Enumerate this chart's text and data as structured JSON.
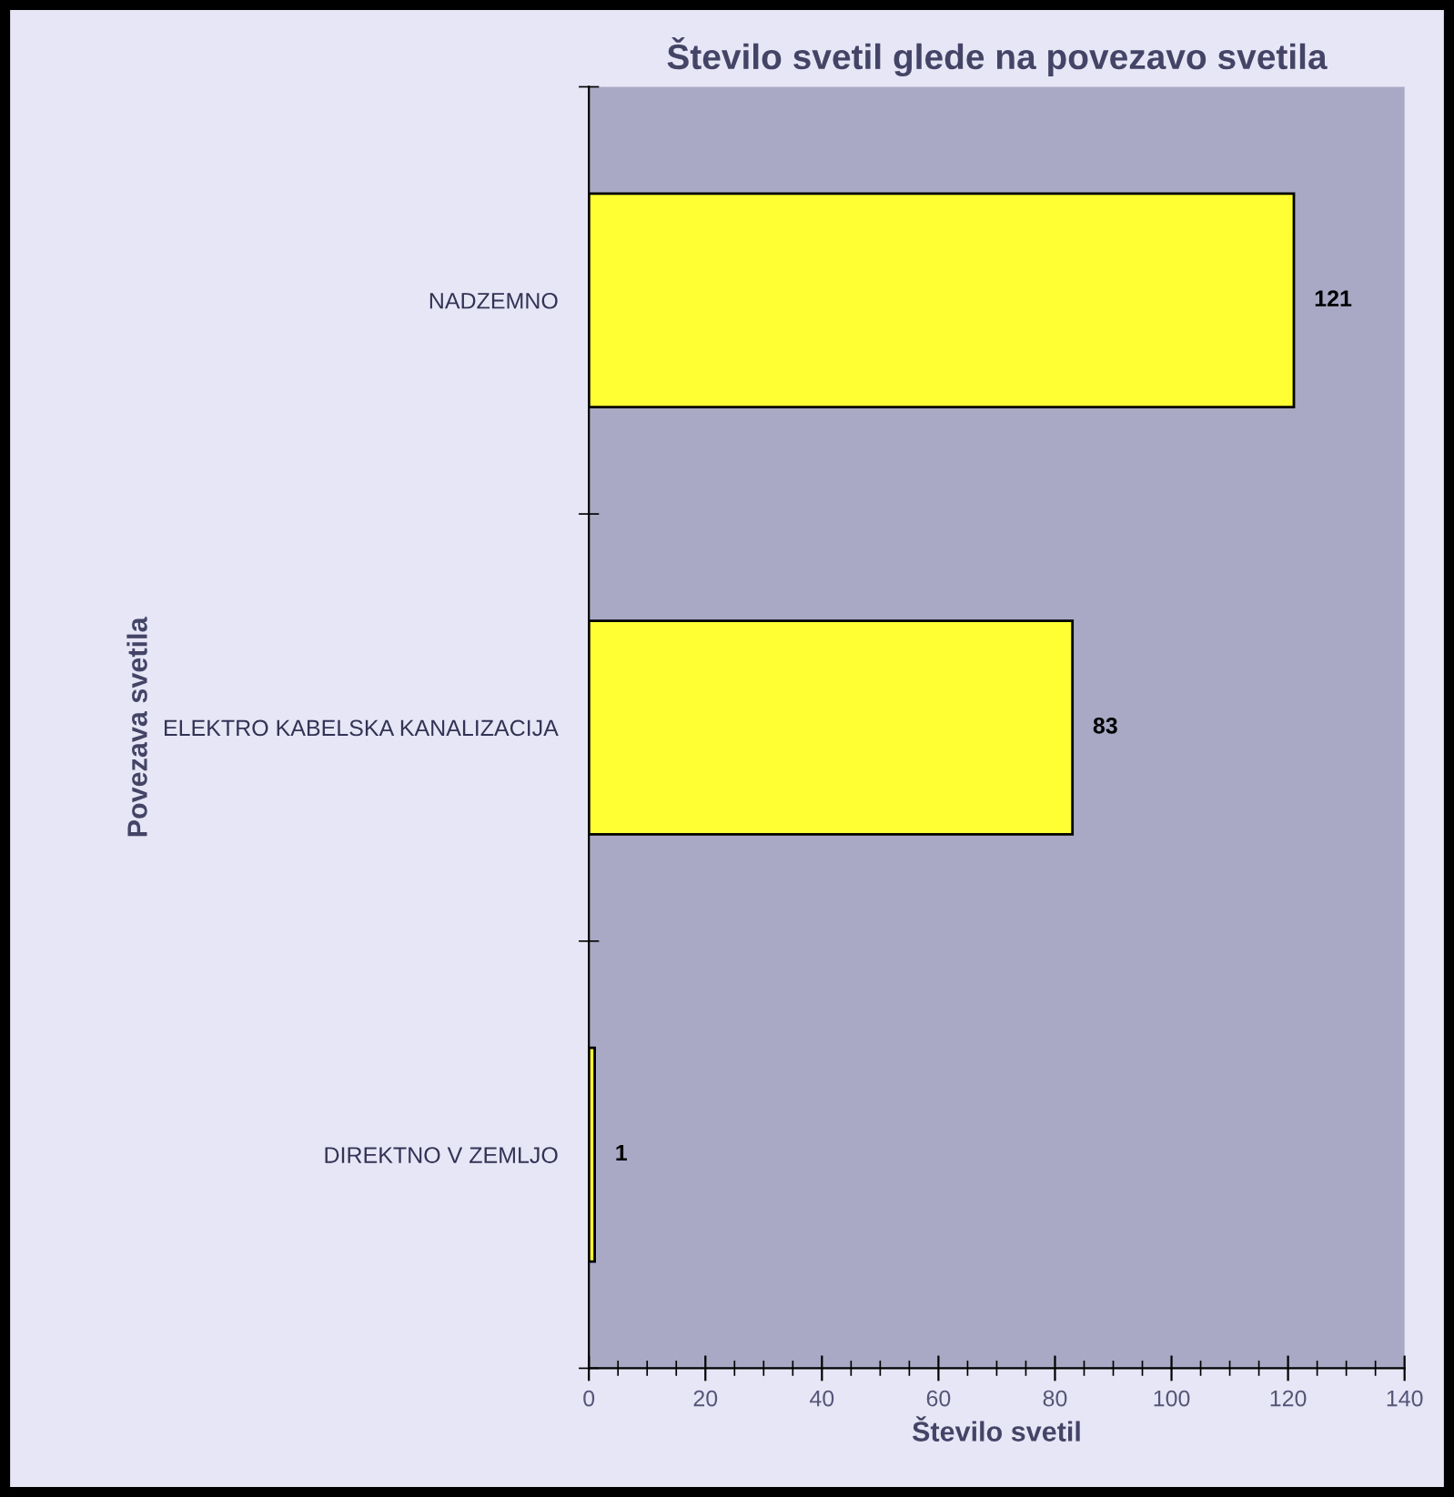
{
  "chart_data": {
    "type": "bar",
    "orientation": "horizontal",
    "title": "Število svetil glede na povezavo svetila",
    "xlabel": "Število svetil",
    "ylabel": "Povezava svetila",
    "categories": [
      "NADZEMNO",
      "ELEKTRO KABELSKA KANALIZACIJA",
      "DIREKTNO V ZEMLJO"
    ],
    "values": [
      121,
      83,
      1
    ],
    "color": "#ffff33",
    "xlim": [
      0,
      140
    ],
    "xticks": [
      0,
      20,
      40,
      60,
      80,
      100,
      120,
      140
    ],
    "data_labels": true,
    "grid": false,
    "legend": false
  }
}
